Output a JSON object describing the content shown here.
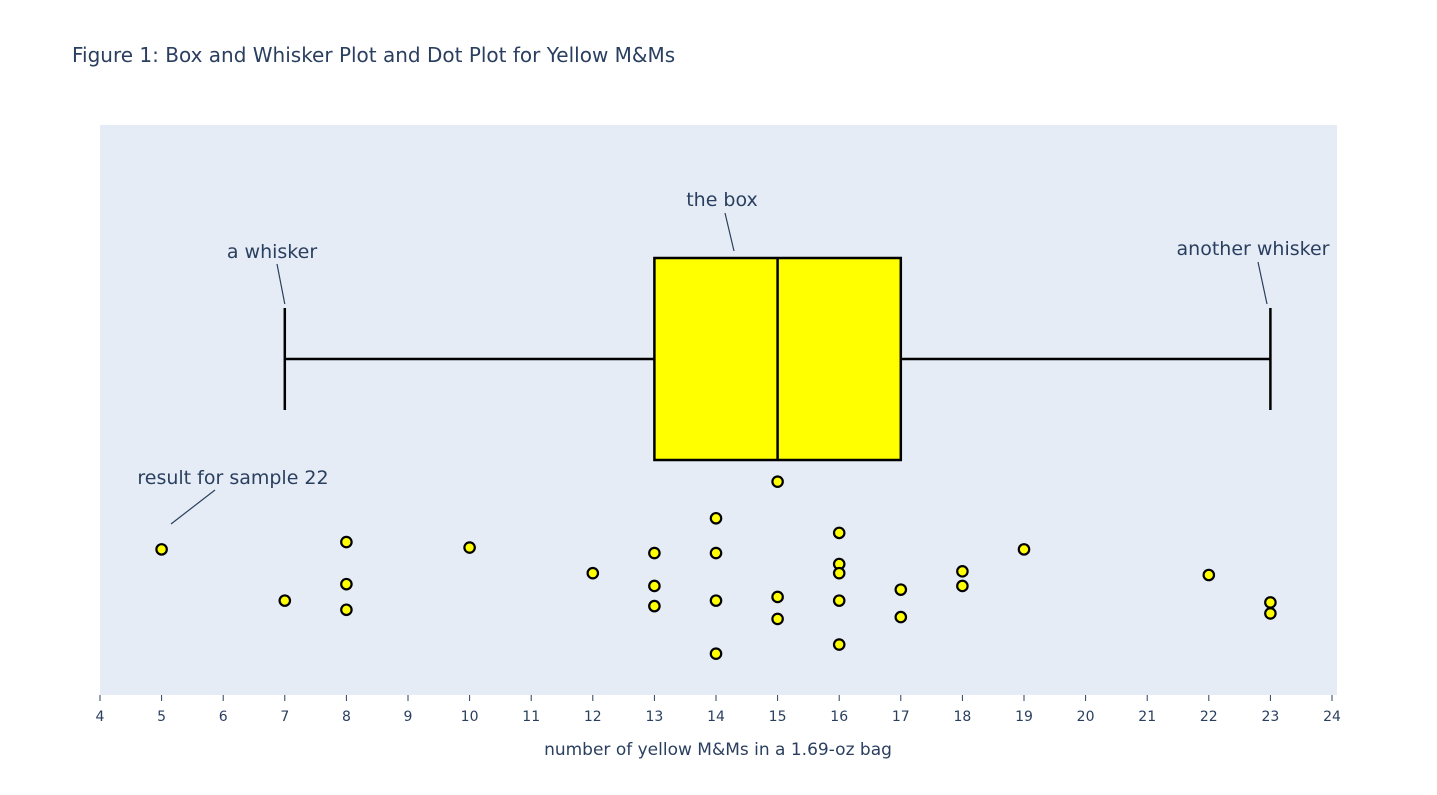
{
  "colors": {
    "plot_bg": "#e5ecf6",
    "text": "#2a3f5f",
    "box_fill": "#ffff00",
    "point_fill": "#ffff00",
    "outline": "#000000"
  },
  "chart_data": {
    "type": "box",
    "title": "Figure 1: Box and Whisker Plot and Dot Plot for Yellow M&Ms",
    "xlabel": "number of yellow M&Ms in a 1.69-oz bag",
    "xlim": [
      4,
      24
    ],
    "xticks": [
      4,
      5,
      6,
      7,
      8,
      9,
      10,
      11,
      12,
      13,
      14,
      15,
      16,
      17,
      18,
      19,
      20,
      21,
      22,
      23,
      24
    ],
    "grid": false,
    "box": {
      "min": 7,
      "q1": 13,
      "median": 15,
      "q3": 17,
      "max": 23
    },
    "points": [
      {
        "x": 5,
        "jitter": 0.14
      },
      {
        "x": 7,
        "jitter": -0.14
      },
      {
        "x": 8,
        "jitter": 0.18
      },
      {
        "x": 8,
        "jitter": -0.05
      },
      {
        "x": 8,
        "jitter": -0.19
      },
      {
        "x": 10,
        "jitter": 0.15
      },
      {
        "x": 12,
        "jitter": 0.01
      },
      {
        "x": 13,
        "jitter": 0.12
      },
      {
        "x": 13,
        "jitter": -0.06
      },
      {
        "x": 13,
        "jitter": -0.17
      },
      {
        "x": 14,
        "jitter": 0.31
      },
      {
        "x": 14,
        "jitter": 0.12
      },
      {
        "x": 14,
        "jitter": -0.14
      },
      {
        "x": 14,
        "jitter": -0.43
      },
      {
        "x": 15,
        "jitter": 0.51
      },
      {
        "x": 15,
        "jitter": -0.12
      },
      {
        "x": 15,
        "jitter": -0.24
      },
      {
        "x": 16,
        "jitter": 0.23
      },
      {
        "x": 16,
        "jitter": 0.06
      },
      {
        "x": 16,
        "jitter": 0.01
      },
      {
        "x": 16,
        "jitter": -0.14
      },
      {
        "x": 16,
        "jitter": -0.38
      },
      {
        "x": 17,
        "jitter": -0.08
      },
      {
        "x": 17,
        "jitter": -0.23
      },
      {
        "x": 18,
        "jitter": 0.02
      },
      {
        "x": 18,
        "jitter": -0.06
      },
      {
        "x": 19,
        "jitter": 0.14
      },
      {
        "x": 22,
        "jitter": 0.0
      },
      {
        "x": 23,
        "jitter": -0.15
      },
      {
        "x": 23,
        "jitter": -0.21
      }
    ],
    "annotations": [
      {
        "text": "the box",
        "target": "box-top"
      },
      {
        "text": "a whisker",
        "target": "whisker-min"
      },
      {
        "text": "another whisker",
        "target": "whisker-max"
      },
      {
        "text": "result for sample 22",
        "target": "point-0"
      }
    ]
  }
}
